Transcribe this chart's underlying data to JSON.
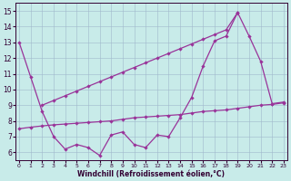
{
  "xlabel": "Windchill (Refroidissement éolien,°C)",
  "bg_color": "#c8ebe9",
  "line_color": "#993399",
  "grid_color": "#a0b8cc",
  "xlim_min": -0.3,
  "xlim_max": 23.3,
  "ylim_min": 5.5,
  "ylim_max": 15.5,
  "yticks": [
    6,
    7,
    8,
    9,
    10,
    11,
    12,
    13,
    14,
    15
  ],
  "xticks": [
    0,
    1,
    2,
    3,
    4,
    5,
    6,
    7,
    8,
    9,
    10,
    11,
    12,
    13,
    14,
    15,
    16,
    17,
    18,
    19,
    20,
    21,
    22,
    23
  ],
  "line1_x": [
    0,
    1,
    2,
    3,
    4,
    5,
    6,
    7,
    8,
    9,
    10,
    11,
    12,
    13,
    14,
    15,
    16,
    17,
    18,
    19,
    20,
    21,
    22,
    23
  ],
  "line1_y": [
    13.0,
    10.8,
    8.6,
    7.0,
    6.2,
    6.5,
    6.3,
    5.8,
    7.1,
    7.3,
    6.5,
    6.3,
    7.1,
    7.0,
    8.2,
    9.5,
    11.5,
    13.1,
    13.4,
    14.9,
    13.4,
    11.8,
    9.1,
    9.2
  ],
  "line2_x": [
    2,
    3,
    4,
    5,
    6,
    7,
    8,
    9,
    10,
    11,
    12,
    13,
    14,
    15,
    16,
    17,
    18,
    19
  ],
  "line2_y": [
    9.0,
    9.3,
    9.6,
    9.9,
    10.2,
    10.5,
    10.8,
    11.1,
    11.4,
    11.7,
    12.0,
    12.3,
    12.6,
    12.9,
    13.2,
    13.5,
    13.8,
    14.9
  ],
  "line3_x": [
    0,
    1,
    2,
    3,
    4,
    5,
    6,
    7,
    8,
    9,
    10,
    11,
    12,
    13,
    14,
    15,
    16,
    17,
    18,
    19,
    20,
    21,
    22,
    23
  ],
  "line3_y": [
    7.5,
    7.6,
    7.68,
    7.75,
    7.8,
    7.85,
    7.9,
    7.95,
    8.0,
    8.1,
    8.2,
    8.25,
    8.3,
    8.35,
    8.4,
    8.5,
    8.6,
    8.65,
    8.7,
    8.8,
    8.9,
    9.0,
    9.05,
    9.15
  ]
}
